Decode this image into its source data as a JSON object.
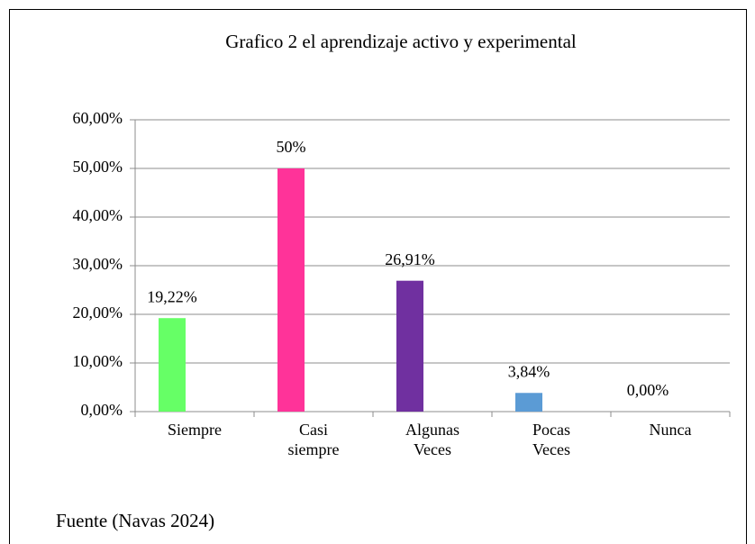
{
  "chart_data": {
    "type": "bar",
    "title": "Grafico 2 el aprendizaje activo y experimental",
    "categories": [
      "Siempre",
      "Casi siempre",
      "Algunas Veces",
      "Pocas Veces",
      "Nunca"
    ],
    "values": [
      19.22,
      50,
      26.91,
      3.84,
      0
    ],
    "value_labels": [
      "19,22%",
      "50%",
      "26,91%",
      "3,84%",
      "0,00%"
    ],
    "colors": [
      "#66ff66",
      "#ff3399",
      "#7030a0",
      "#5b9bd5",
      "#5b9bd5"
    ],
    "ylim": [
      0,
      60
    ],
    "yticks": [
      {
        "value": 0,
        "label": "0,00%"
      },
      {
        "value": 10,
        "label": "10,00%"
      },
      {
        "value": 20,
        "label": "20,00%"
      },
      {
        "value": 30,
        "label": "30,00%"
      },
      {
        "value": 40,
        "label": "40,00%"
      },
      {
        "value": 50,
        "label": "50,00%"
      },
      {
        "value": 60,
        "label": "60,00%"
      }
    ],
    "grid": true,
    "source": "Fuente (Navas 2024)"
  }
}
